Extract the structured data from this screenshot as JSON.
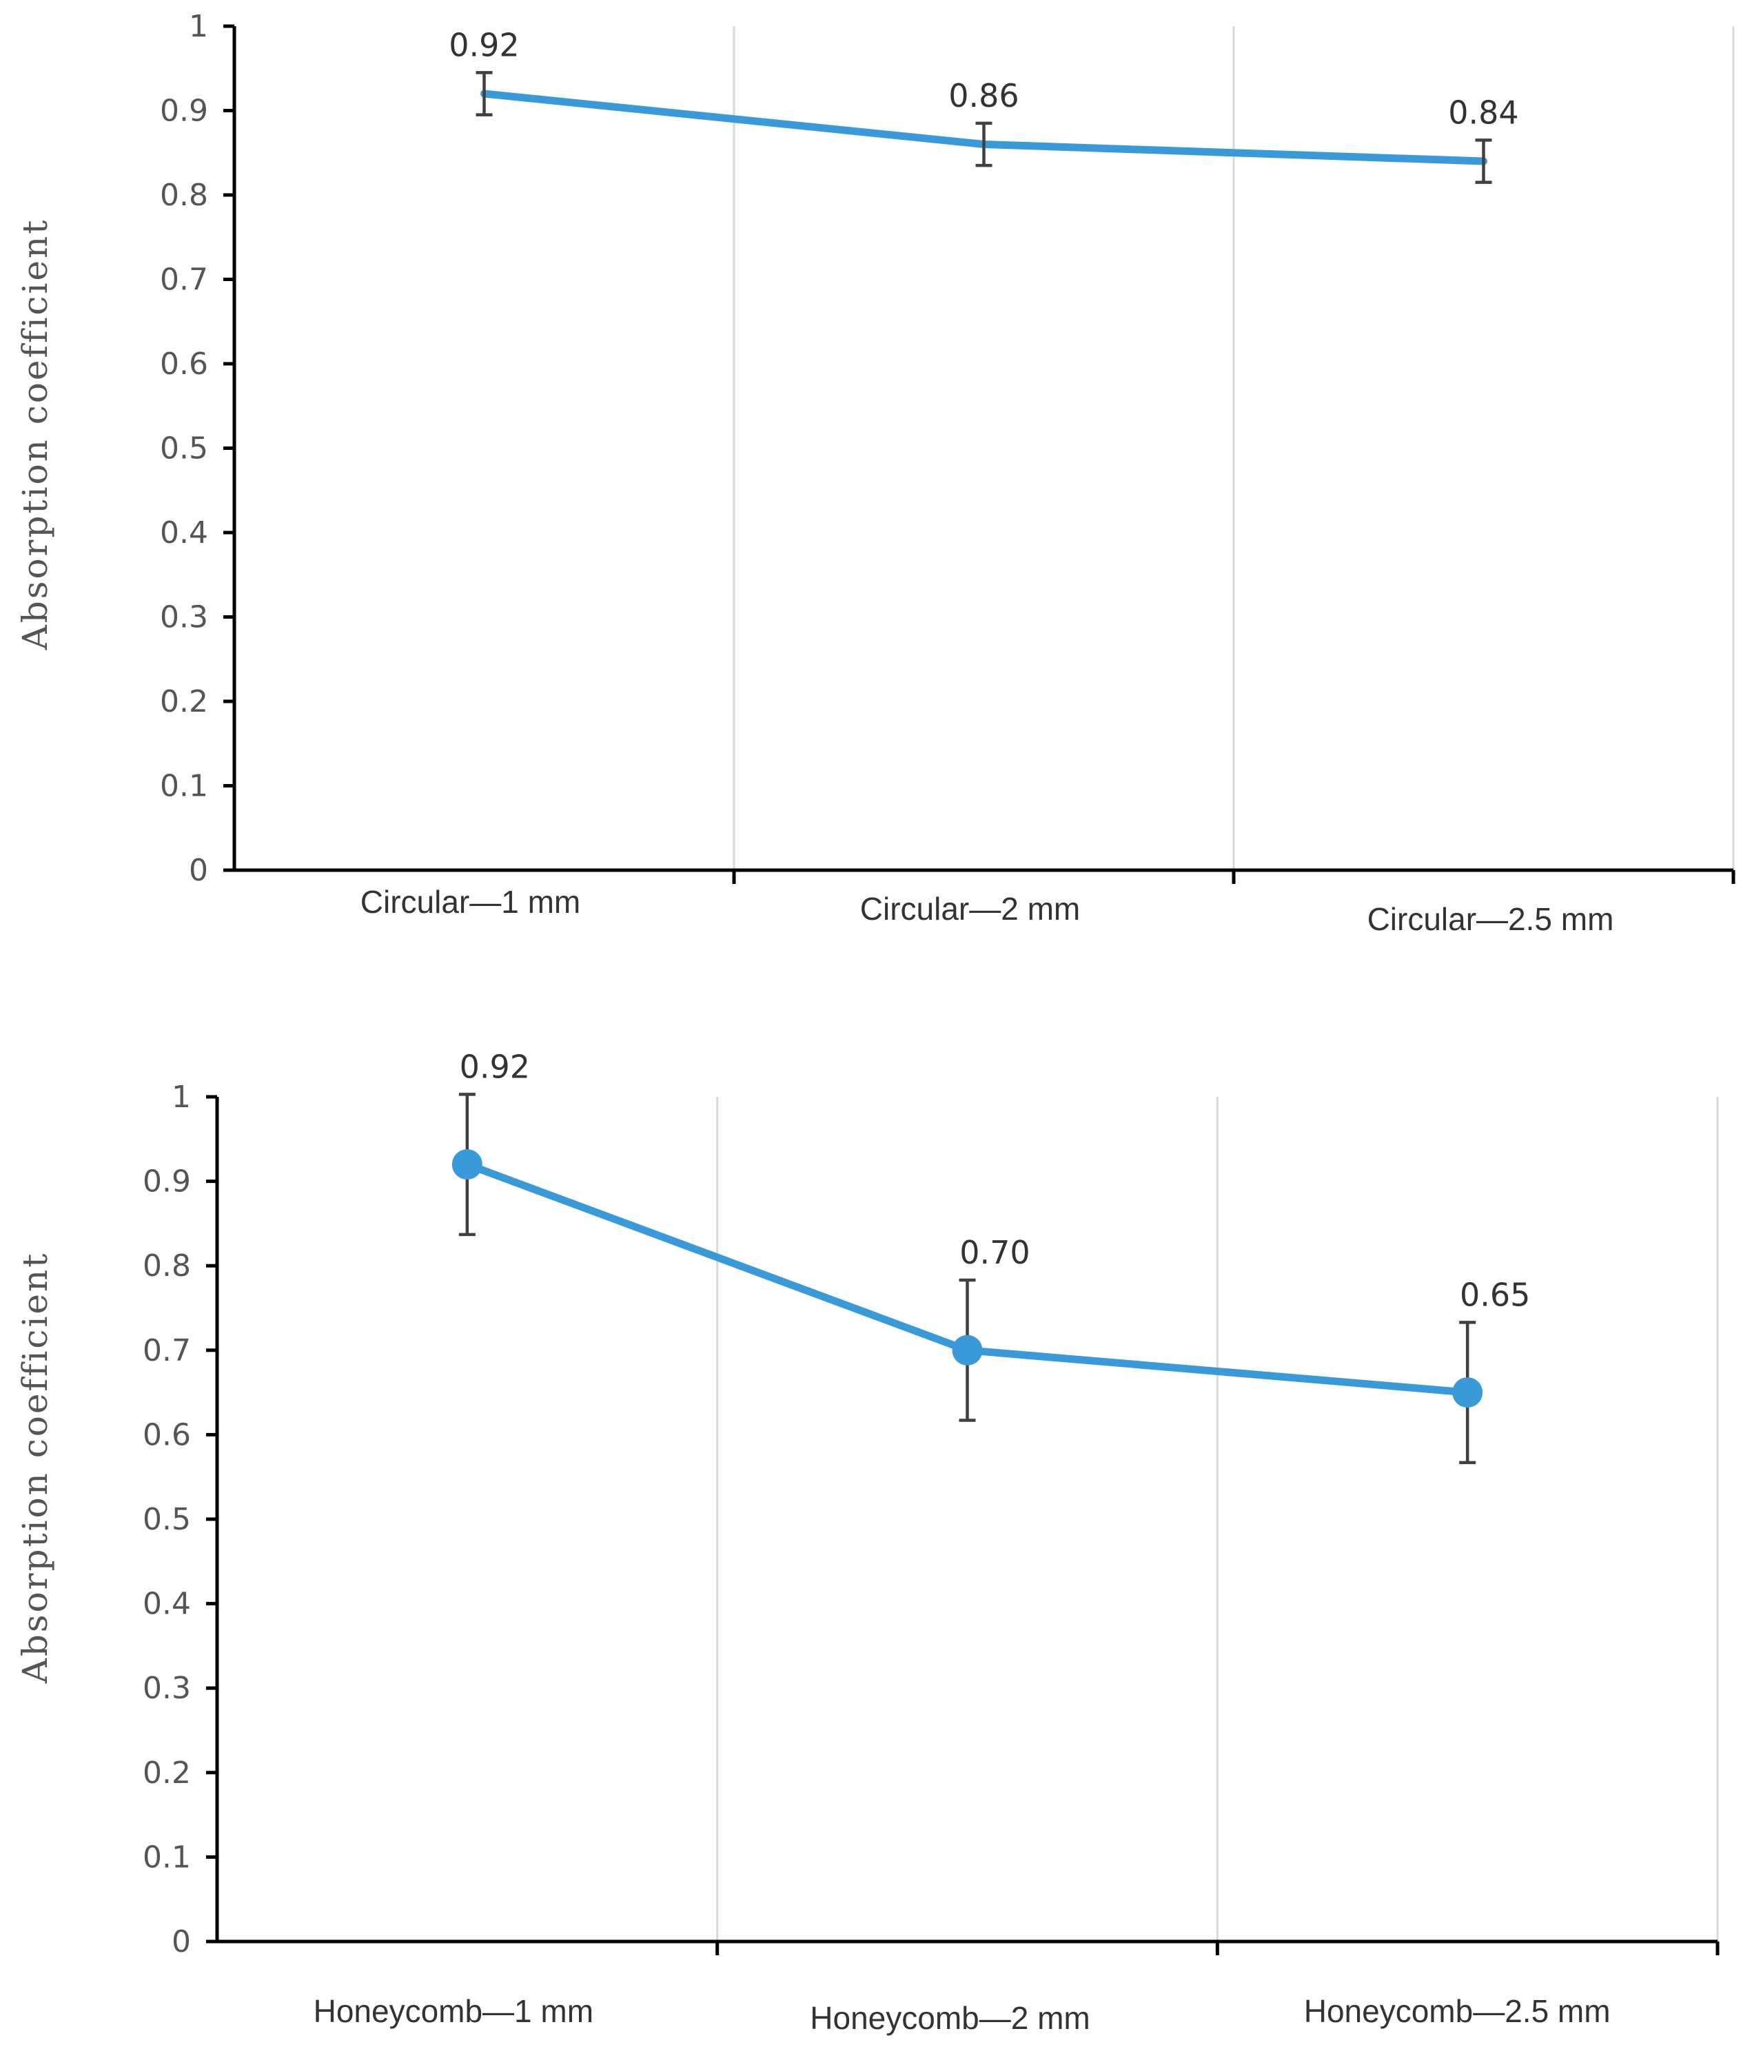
{
  "chart_data": [
    {
      "type": "line",
      "title": "",
      "xlabel": "",
      "ylabel": "Absorption coefficient",
      "ylim": [
        0,
        1
      ],
      "yticks": [
        "0",
        "0.1",
        "0.2",
        "0.3",
        "0.4",
        "0.5",
        "0.6",
        "0.7",
        "0.8",
        "0.9",
        "1"
      ],
      "categories": [
        "Circular—1 mm",
        "Circular—2 mm",
        "Circular—2.5 mm"
      ],
      "values": [
        0.92,
        0.86,
        0.84
      ],
      "errors": [
        0.025,
        0.025,
        0.025
      ],
      "data_labels": [
        "0.92",
        "0.86",
        "0.84"
      ],
      "markers": false,
      "grid": "vertical",
      "color": "#3a9ad9"
    },
    {
      "type": "line",
      "title": "",
      "xlabel": "",
      "ylabel": "Absorption coefficient",
      "ylim": [
        0,
        1
      ],
      "yticks": [
        "0",
        "0.1",
        "0.2",
        "0.3",
        "0.4",
        "0.5",
        "0.6",
        "0.7",
        "0.8",
        "0.9",
        "1"
      ],
      "categories": [
        "Honeycomb—1 mm",
        "Honeycomb—2 mm",
        "Honeycomb—2.5 mm"
      ],
      "values": [
        0.92,
        0.7,
        0.65
      ],
      "errors": [
        0.083,
        0.083,
        0.083
      ],
      "data_labels": [
        "0.92",
        "0.70",
        "0.65"
      ],
      "markers": true,
      "grid": "vertical",
      "color": "#3a9ad9"
    }
  ]
}
